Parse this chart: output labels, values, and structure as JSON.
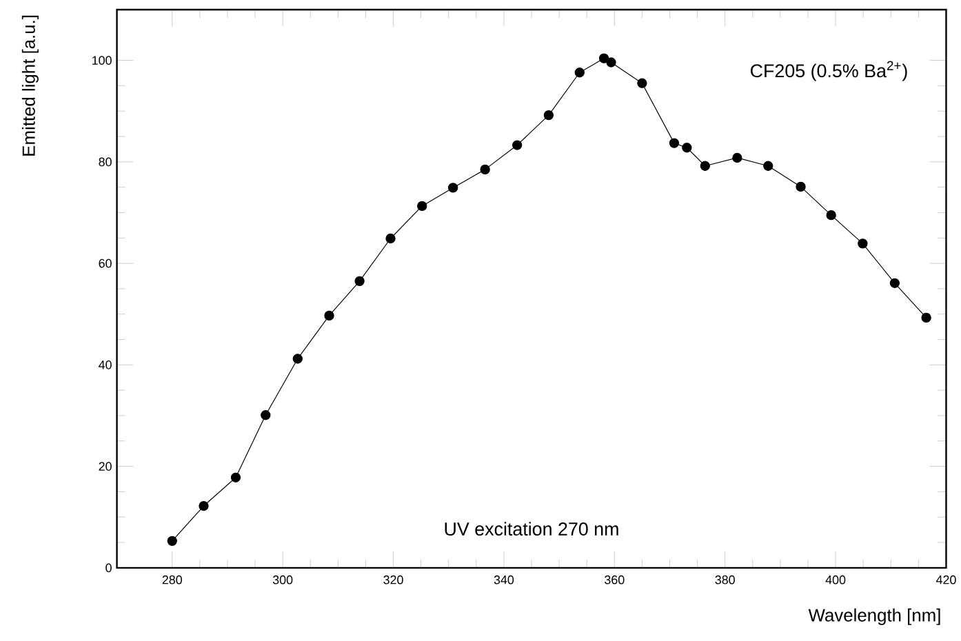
{
  "chart_data": {
    "type": "line",
    "xlabel": "Wavelength [nm]",
    "ylabel": "Emitted light [a.u.]",
    "annotations": [
      "CF205 (0.5% Ba$^{2+}$)",
      "UV excitation 270 nm"
    ],
    "xlim": [
      270,
      420
    ],
    "ylim": [
      0,
      110
    ],
    "xticks": [
      280,
      300,
      320,
      340,
      360,
      380,
      400,
      420
    ],
    "yticks": [
      0,
      20,
      40,
      60,
      80,
      100
    ],
    "marker": "circle",
    "line_style": "solid",
    "series": [
      {
        "color": "#000000",
        "x": [
          280,
          285.7,
          291.5,
          296.9,
          302.7,
          308.4,
          313.9,
          319.5,
          325.2,
          330.8,
          336.6,
          342.4,
          348.1,
          353.7,
          358.1,
          359.4,
          365.0,
          370.8,
          373.1,
          376.4,
          382.2,
          387.8,
          393.7,
          399.2,
          404.9,
          410.7,
          416.4
        ],
        "values": [
          5.3,
          12.2,
          17.8,
          30.1,
          41.2,
          49.7,
          56.5,
          64.9,
          71.3,
          74.9,
          78.5,
          83.3,
          89.2,
          97.6,
          100.4,
          99.6,
          95.5,
          83.7,
          82.8,
          79.2,
          80.8,
          79.2,
          75.1,
          69.5,
          63.9,
          56.1,
          49.3
        ]
      }
    ]
  }
}
